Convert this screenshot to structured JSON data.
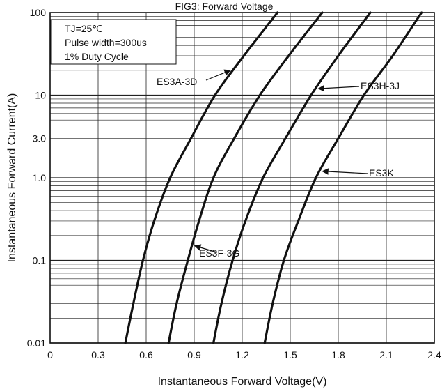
{
  "chart_data": {
    "type": "line",
    "title": "FIG3: Forward Voltage",
    "xlabel": "Instantaneous Forward Voltage(V)",
    "ylabel": "Instantaneous Forward Current(A)",
    "x_ticks": [
      0,
      0.3,
      0.6,
      0.9,
      1.2,
      1.5,
      1.8,
      2.1,
      2.4
    ],
    "x_tick_labels": [
      "0",
      "0.3",
      "0.6",
      "0.9",
      "1.2",
      "1.5",
      "1.8",
      "2.1",
      "2.4"
    ],
    "y_scale": "log",
    "y_tick_labels": [
      {
        "value": 0.01,
        "label": "0.01"
      },
      {
        "value": 0.1,
        "label": "0.1"
      },
      {
        "value": 1.0,
        "label": "1.0"
      },
      {
        "value": 3.0,
        "label": "3.0"
      },
      {
        "value": 10,
        "label": "10"
      },
      {
        "value": 100,
        "label": "100"
      }
    ],
    "xlim": [
      0,
      2.4
    ],
    "ylim": [
      0.01,
      100
    ],
    "grid": true,
    "conditions": [
      "TJ=25℃",
      "Pulse width=300us",
      "1% Duty Cycle"
    ],
    "series": [
      {
        "name": "ES3A-3D",
        "x": [
          0.47,
          0.52,
          0.58,
          0.65,
          0.75,
          0.88,
          1.03,
          1.21,
          1.42
        ],
        "y": [
          0.01,
          0.03,
          0.1,
          0.3,
          1.0,
          3.0,
          10,
          30,
          100
        ]
      },
      {
        "name": "ES3F-3G",
        "x": [
          0.74,
          0.79,
          0.86,
          0.93,
          1.02,
          1.15,
          1.31,
          1.49,
          1.7
        ],
        "y": [
          0.01,
          0.03,
          0.1,
          0.3,
          1.0,
          3.0,
          10,
          30,
          100
        ]
      },
      {
        "name": "ES3H-3J",
        "x": [
          1.02,
          1.07,
          1.14,
          1.22,
          1.33,
          1.47,
          1.63,
          1.8,
          2.0
        ],
        "y": [
          0.01,
          0.03,
          0.1,
          0.3,
          1.0,
          3.0,
          10,
          30,
          100
        ]
      },
      {
        "name": "ES3K",
        "x": [
          1.34,
          1.39,
          1.46,
          1.55,
          1.66,
          1.8,
          1.96,
          2.14,
          2.32
        ],
        "y": [
          0.01,
          0.03,
          0.1,
          0.3,
          1.0,
          3.0,
          10,
          30,
          100
        ]
      }
    ],
    "annotations": [
      {
        "text": "ES3A-3D",
        "series": 0,
        "at_y": 20
      },
      {
        "text": "ES3F-3G",
        "series": 1,
        "at_y": 0.15
      },
      {
        "text": "ES3H-3J",
        "series": 2,
        "at_y": 12
      },
      {
        "text": "ES3K",
        "series": 3,
        "at_y": 1.2
      }
    ]
  }
}
